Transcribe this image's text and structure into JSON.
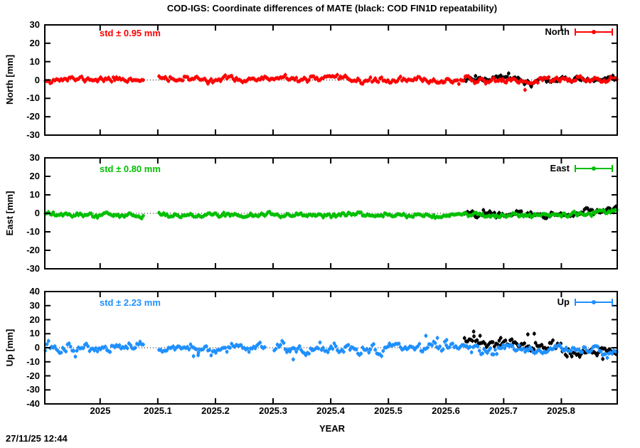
{
  "chart_data": {
    "type": "scatter",
    "title": "COD-IGS: Coordinate differences of MATE (black: COD FIN1D repeatability)",
    "xlabel": "YEAR",
    "timestamp": "27/11/25 12:44",
    "legend_position": "top-right-inside",
    "grid": "dotted-zero-line-only",
    "x_range": [
      2024.904,
      2025.897
    ],
    "step": 0.0027379,
    "x_tick_values": [
      2025,
      2025.1,
      2025.2,
      2025.3,
      2025.4,
      2025.5,
      2025.6,
      2025.7,
      2025.8
    ],
    "x_tick_labels": [
      "2025",
      "2025.1",
      "2025.2",
      "2025.3",
      "2025.4",
      "2025.5",
      "2025.6",
      "2025.7",
      "2025.8"
    ],
    "panels": [
      {
        "name": "North",
        "ylabel": "North [mm]",
        "ylim": [
          -30,
          30
        ],
        "ytick_values": [
          30,
          20,
          10,
          0,
          -10,
          -20,
          -30
        ],
        "std_label": "std ± 0.95 mm",
        "std_mm": 0.95,
        "legend_label": "North",
        "color": "#ff0000",
        "series": [
          {
            "name": "COD FIN1D repeatability",
            "color": "#000000",
            "seed": 21,
            "x_start": 2025.632,
            "x_end": 2025.897,
            "bias": 0.3,
            "std": 1.0,
            "smooth": 0.5,
            "segments": [
              {
                "from": 2025.632,
                "to": 2025.71,
                "bias": 0.7
              },
              {
                "from": 2025.71,
                "to": 2025.77,
                "bias": -1.0
              }
            ],
            "spikes": [
              {
                "x": 2025.748,
                "y": -3.6
              }
            ],
            "gaps": []
          },
          {
            "name": "COD-IGS",
            "color": "#ff0000",
            "seed": 11,
            "x_start": 2024.905,
            "x_end": 2025.897,
            "bias": 0.4,
            "std": 0.85,
            "smooth": 0.5,
            "segments": [
              {
                "from": 2025.45,
                "to": 2025.7,
                "bias": -0.7
              },
              {
                "from": 2025.72,
                "to": 2025.76,
                "bias": -1.2
              }
            ],
            "spikes": [
              {
                "x": 2025.737,
                "y": -5.4
              }
            ],
            "gaps": [
              [
                2025.076,
                2025.102
              ]
            ]
          }
        ]
      },
      {
        "name": "East",
        "ylabel": "East [mm]",
        "ylim": [
          -30,
          30
        ],
        "ytick_values": [
          30,
          20,
          10,
          0,
          -10,
          -20,
          -30
        ],
        "std_label": "std ± 0.80 mm",
        "std_mm": 0.8,
        "legend_label": "East",
        "color": "#00bf00",
        "series": [
          {
            "name": "COD FIN1D repeatability",
            "color": "#000000",
            "seed": 22,
            "x_start": 2025.632,
            "x_end": 2025.897,
            "bias": -0.2,
            "std": 0.85,
            "smooth": 0.5,
            "segments": [
              {
                "from": 2025.84,
                "to": 2025.897,
                "bias": 1.5
              }
            ],
            "spikes": [],
            "gaps": []
          },
          {
            "name": "COD-IGS",
            "color": "#00bf00",
            "seed": 12,
            "x_start": 2024.905,
            "x_end": 2025.897,
            "bias": -0.9,
            "std": 0.65,
            "smooth": 0.5,
            "segments": [
              {
                "from": 2025.855,
                "to": 2025.897,
                "bias": 2.2
              }
            ],
            "spikes": [],
            "gaps": [
              [
                2025.076,
                2025.102
              ]
            ]
          }
        ]
      },
      {
        "name": "Up",
        "ylabel": "Up [mm]",
        "ylim": [
          -40,
          40
        ],
        "ytick_values": [
          40,
          30,
          20,
          10,
          0,
          -10,
          -20,
          -30,
          -40
        ],
        "std_label": "std ± 2.23 mm",
        "std_mm": 2.23,
        "legend_label": "Up",
        "color": "#1e90ff",
        "series": [
          {
            "name": "COD FIN1D repeatability",
            "color": "#000000",
            "seed": 23,
            "x_start": 2025.632,
            "x_end": 2025.897,
            "bias": 0.0,
            "std": 2.1,
            "smooth": 0.5,
            "segments": [
              {
                "from": 2025.632,
                "to": 2025.715,
                "bias": 3.3
              },
              {
                "from": 2025.715,
                "to": 2025.8,
                "bias": 0.8
              },
              {
                "from": 2025.8,
                "to": 2025.897,
                "bias": -4.0
              }
            ],
            "spikes": [
              {
                "x": 2025.648,
                "y": 11.5
              },
              {
                "x": 2025.659,
                "y": 8.5
              },
              {
                "x": 2025.695,
                "y": 7.0
              },
              {
                "x": 2025.742,
                "y": 9.5
              },
              {
                "x": 2025.753,
                "y": 10.0
              },
              {
                "x": 2025.872,
                "y": -8.0
              }
            ],
            "gaps": []
          },
          {
            "name": "COD-IGS",
            "color": "#1e90ff",
            "seed": 13,
            "x_start": 2024.905,
            "x_end": 2025.897,
            "bias": -0.8,
            "std": 2.0,
            "smooth": 0.5,
            "segments": [
              {
                "from": 2025.55,
                "to": 2025.62,
                "bias": 1.2
              },
              {
                "from": 2025.8,
                "to": 2025.897,
                "bias": -0.8
              }
            ],
            "spikes": [
              {
                "x": 2025.162,
                "y": -6.0
              },
              {
                "x": 2025.17,
                "y": -5.3
              },
              {
                "x": 2025.335,
                "y": -8.3
              },
              {
                "x": 2025.565,
                "y": 8.5
              },
              {
                "x": 2025.585,
                "y": 7.0
              },
              {
                "x": 2025.601,
                "y": 5.5
              }
            ],
            "gaps": [
              [
                2025.076,
                2025.102
              ],
              [
                2025.287,
                2025.3
              ]
            ]
          }
        ]
      }
    ]
  }
}
